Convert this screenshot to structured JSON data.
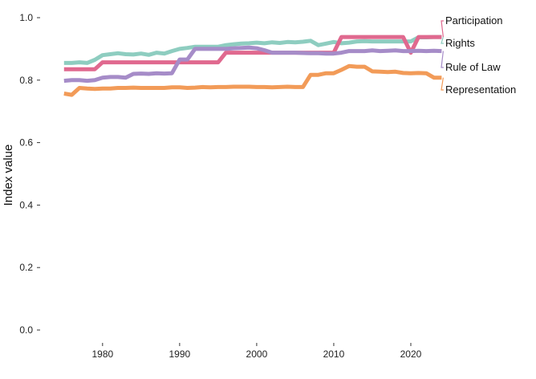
{
  "chart_data": {
    "type": "line",
    "xlabel": "",
    "ylabel": "Index value",
    "xlim": [
      1974.5,
      2025
    ],
    "ylim": [
      -0.02,
      1.02
    ],
    "x_ticks": [
      1980,
      1990,
      2000,
      2010,
      2020
    ],
    "y_ticks": [
      0.0,
      0.2,
      0.4,
      0.6,
      0.8,
      1.0
    ],
    "y_tick_labels": [
      "0.0",
      "0.2",
      "0.4",
      "0.6",
      "0.8",
      "1.0"
    ],
    "grid": false,
    "legend": "direct labels at right end of lines",
    "x": [
      1975,
      1976,
      1977,
      1978,
      1979,
      1980,
      1981,
      1982,
      1983,
      1984,
      1985,
      1986,
      1987,
      1988,
      1989,
      1990,
      1991,
      1992,
      1993,
      1994,
      1995,
      1996,
      1997,
      1998,
      1999,
      2000,
      2001,
      2002,
      2003,
      2004,
      2005,
      2006,
      2007,
      2008,
      2009,
      2010,
      2011,
      2012,
      2013,
      2014,
      2015,
      2016,
      2017,
      2018,
      2019,
      2020,
      2021,
      2022,
      2023,
      2024
    ],
    "series": [
      {
        "name": "Rights",
        "color": "#8ecdc0",
        "values": [
          0.855,
          0.855,
          0.857,
          0.855,
          0.865,
          0.88,
          0.883,
          0.886,
          0.883,
          0.882,
          0.885,
          0.881,
          0.888,
          0.885,
          0.893,
          0.9,
          0.903,
          0.907,
          0.907,
          0.907,
          0.907,
          0.912,
          0.915,
          0.917,
          0.918,
          0.92,
          0.918,
          0.921,
          0.919,
          0.922,
          0.921,
          0.923,
          0.926,
          0.912,
          0.917,
          0.922,
          0.918,
          0.92,
          0.924,
          0.925,
          0.924,
          0.924,
          0.924,
          0.924,
          0.924,
          0.924,
          0.937,
          0.937,
          0.938,
          0.938
        ]
      },
      {
        "name": "Participation",
        "color": "#e0698f",
        "values": [
          0.835,
          0.835,
          0.835,
          0.835,
          0.835,
          0.857,
          0.857,
          0.857,
          0.857,
          0.857,
          0.857,
          0.857,
          0.857,
          0.857,
          0.857,
          0.857,
          0.857,
          0.857,
          0.857,
          0.857,
          0.857,
          0.888,
          0.888,
          0.888,
          0.888,
          0.888,
          0.888,
          0.888,
          0.888,
          0.888,
          0.888,
          0.888,
          0.888,
          0.888,
          0.888,
          0.888,
          0.938,
          0.938,
          0.938,
          0.938,
          0.938,
          0.938,
          0.938,
          0.938,
          0.938,
          0.888,
          0.938,
          0.938,
          0.938,
          0.938
        ]
      },
      {
        "name": "Rule of Law",
        "color": "#a68cc8",
        "values": [
          0.798,
          0.8,
          0.8,
          0.798,
          0.8,
          0.808,
          0.81,
          0.81,
          0.808,
          0.82,
          0.821,
          0.82,
          0.822,
          0.821,
          0.822,
          0.866,
          0.866,
          0.9,
          0.9,
          0.9,
          0.9,
          0.9,
          0.902,
          0.903,
          0.904,
          0.902,
          0.896,
          0.888,
          0.888,
          0.888,
          0.888,
          0.887,
          0.886,
          0.886,
          0.885,
          0.885,
          0.888,
          0.893,
          0.893,
          0.893,
          0.895,
          0.893,
          0.894,
          0.895,
          0.893,
          0.893,
          0.894,
          0.893,
          0.894,
          0.893
        ]
      },
      {
        "name": "Representation",
        "color": "#f29b58",
        "values": [
          0.757,
          0.753,
          0.775,
          0.773,
          0.772,
          0.773,
          0.773,
          0.775,
          0.775,
          0.776,
          0.775,
          0.775,
          0.775,
          0.775,
          0.777,
          0.777,
          0.775,
          0.776,
          0.778,
          0.777,
          0.778,
          0.778,
          0.779,
          0.779,
          0.779,
          0.778,
          0.778,
          0.777,
          0.778,
          0.779,
          0.778,
          0.778,
          0.817,
          0.817,
          0.822,
          0.822,
          0.833,
          0.845,
          0.843,
          0.843,
          0.828,
          0.827,
          0.826,
          0.827,
          0.823,
          0.822,
          0.823,
          0.822,
          0.808,
          0.808
        ]
      }
    ]
  }
}
